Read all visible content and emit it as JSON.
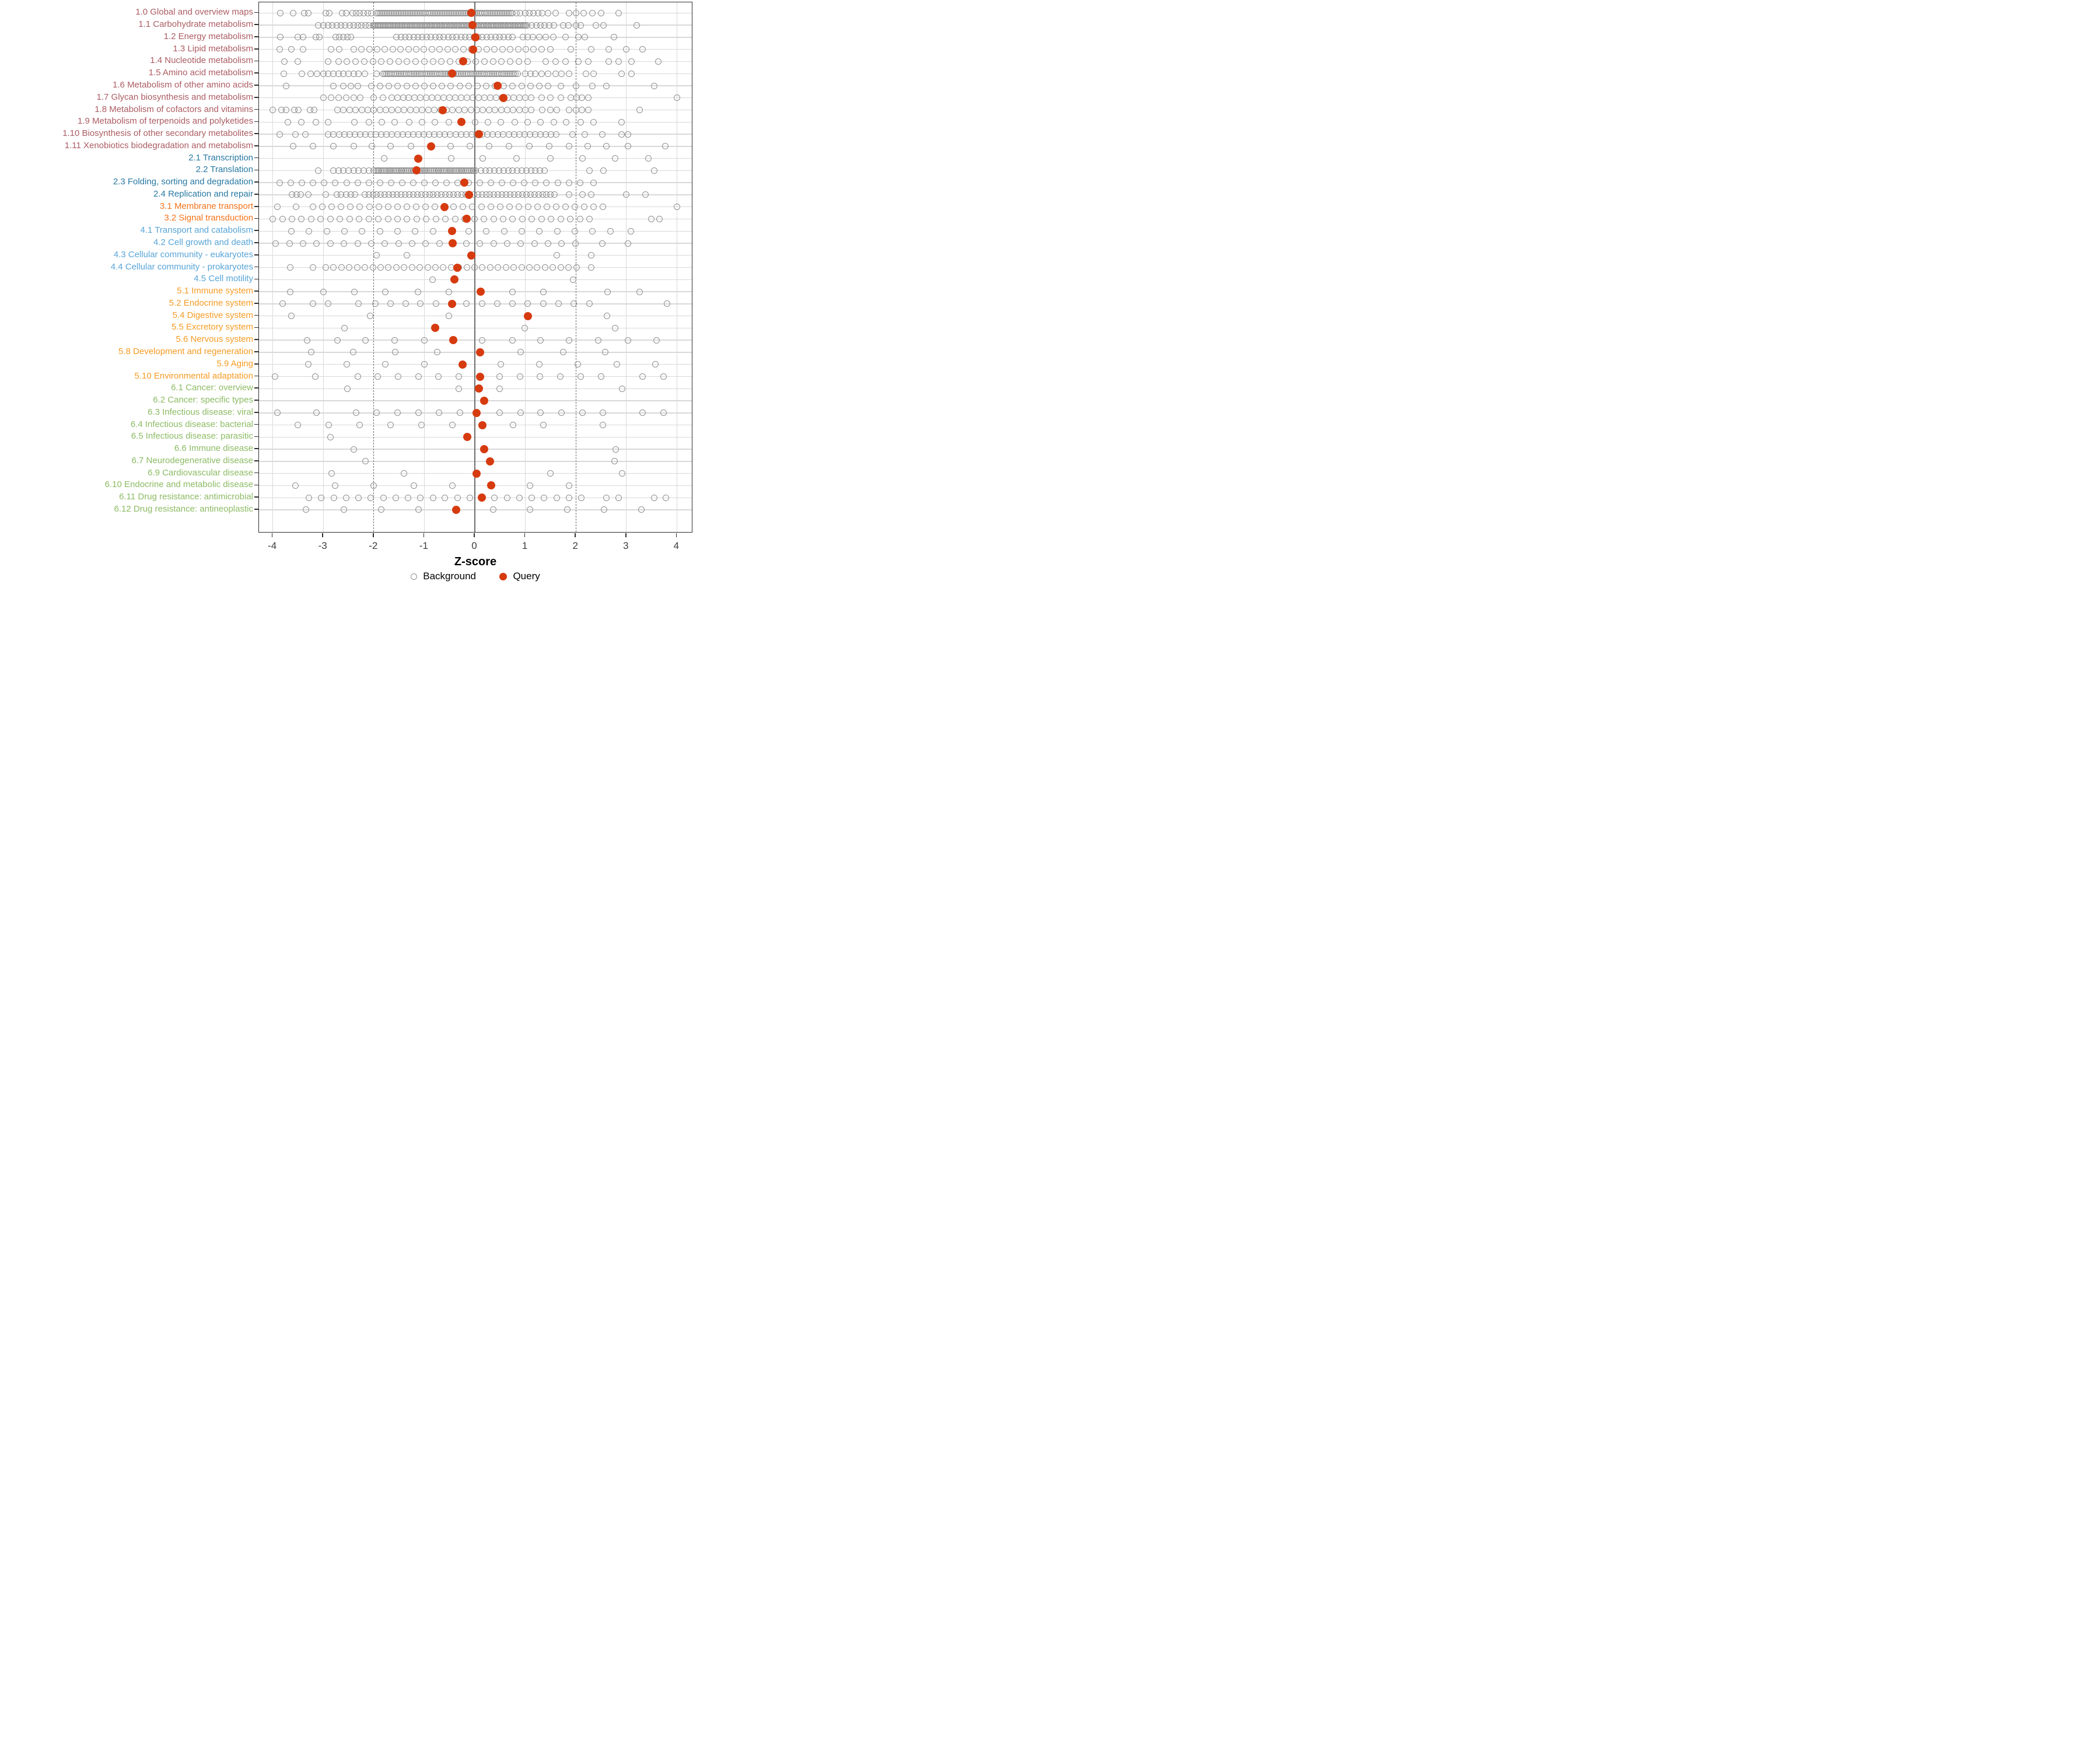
{
  "colors": {
    "query_dot": "#d63b10",
    "background_dot": "#8f8f8f",
    "zero_line": "#6e6e6e",
    "dashed_line": "#6b6b6b",
    "grid_line": "#d9d9d9",
    "group_colors": {
      "1": "#ac5c63",
      "2": "#2879a3",
      "3": "#f5731a",
      "4": "#58a5d8",
      "5": "#f79b24",
      "6": "#8cbb63"
    }
  },
  "axis": {
    "xlabel": "Z-score",
    "ticks": [
      "-4",
      "-3",
      "-2",
      "-1",
      "0",
      "1",
      "2",
      "3",
      "4"
    ],
    "tick_values": [
      -4,
      -3,
      -2,
      -1,
      0,
      1,
      2,
      3,
      4
    ],
    "xlim": [
      -4.3,
      4.3
    ],
    "dashed_lines_at": [
      -2,
      2
    ],
    "solid_line_at": 0
  },
  "legend": {
    "background_label": "Background",
    "query_label": "Query"
  },
  "chart_data": {
    "type": "scatter",
    "title": "",
    "xlabel": "Z-score",
    "series_legend": [
      "Background",
      "Query"
    ],
    "rows": [
      {
        "label": "1.0 Global and overview maps",
        "group": 1,
        "query": -0.07,
        "bands": [
          [
            -1.95,
            0.75,
            0.035
          ]
        ],
        "dots": [
          -3.85,
          -3.6,
          -3.38,
          -3.3,
          -2.95,
          -2.88,
          -2.63,
          -2.55,
          -2.42,
          -2.35,
          -2.28,
          -2.2,
          -2.12,
          -2.05,
          0.82,
          0.9,
          1.0,
          1.08,
          1.16,
          1.25,
          1.33,
          1.45,
          1.6,
          1.86,
          2.0,
          2.15,
          2.33,
          2.5,
          2.85
        ]
      },
      {
        "label": "1.1 Carbohydrate metabolism",
        "group": 1,
        "query": -0.05,
        "bands": [
          [
            -2.02,
            1.05,
            0.028
          ]
        ],
        "dots": [
          -3.1,
          -3.0,
          -2.9,
          -2.82,
          -2.73,
          -2.65,
          -2.57,
          -2.48,
          -2.4,
          -2.32,
          -2.25,
          -2.17,
          -2.1,
          1.13,
          1.22,
          1.3,
          1.38,
          1.47,
          1.57,
          1.75,
          1.85,
          2.0,
          2.1,
          2.4,
          2.55,
          3.2
        ]
      },
      {
        "label": "1.2 Energy metabolism",
        "group": 1,
        "query": 0.01,
        "bands": [
          [
            -1.55,
            0.78,
            0.085
          ]
        ],
        "dots": [
          -3.85,
          -3.5,
          -3.4,
          -3.15,
          -3.08,
          -2.75,
          -2.68,
          -2.6,
          -2.52,
          -2.45,
          0.95,
          1.05,
          1.15,
          1.28,
          1.4,
          1.55,
          1.8,
          2.05,
          2.18,
          2.75
        ]
      },
      {
        "label": "1.3 Lipid metabolism",
        "group": 1,
        "query": -0.03,
        "bands": [
          [
            -2.4,
            1.32,
            0.155
          ]
        ],
        "dots": [
          -3.86,
          -3.63,
          -3.4,
          -2.85,
          -2.68,
          1.5,
          1.9,
          2.3,
          2.65,
          3.0,
          3.32
        ]
      },
      {
        "label": "1.4 Nucleotide metabolism",
        "group": 1,
        "query": -0.23,
        "bands": [
          [
            -2.7,
            1.1,
            0.17
          ]
        ],
        "dots": [
          -3.77,
          -3.5,
          -2.9,
          1.4,
          1.6,
          1.8,
          2.05,
          2.25,
          2.65,
          2.85,
          3.1,
          3.63
        ]
      },
      {
        "label": "1.5 Amino acid metabolism",
        "group": 1,
        "query": -0.45,
        "bands": [
          [
            -1.82,
            0.86,
            0.036
          ]
        ],
        "dots": [
          -3.78,
          -3.42,
          -3.25,
          -3.12,
          -3.0,
          -2.9,
          -2.8,
          -2.7,
          -2.6,
          -2.5,
          -2.4,
          -2.3,
          -2.18,
          -1.95,
          1.0,
          1.1,
          1.2,
          1.32,
          1.45,
          1.6,
          1.72,
          1.87,
          2.2,
          2.35,
          2.9,
          3.1
        ]
      },
      {
        "label": "1.6 Metabolism of other amino acids",
        "group": 1,
        "query": 0.45,
        "bands": [
          [
            -2.05,
            1.33,
            0.175
          ]
        ],
        "dots": [
          -3.74,
          -2.8,
          -2.6,
          -2.45,
          -2.32,
          1.45,
          1.7,
          2.0,
          2.33,
          2.6,
          3.55
        ]
      },
      {
        "label": "1.7 Glycan biosynthesis and metabolism",
        "group": 1,
        "query": 0.57,
        "bands": [
          [
            -1.65,
            1.2,
            0.115
          ]
        ],
        "dots": [
          -3.0,
          -2.85,
          -2.7,
          -2.55,
          -2.4,
          -2.27,
          -2.0,
          -1.82,
          1.32,
          1.5,
          1.7,
          1.9,
          2.02,
          2.12,
          2.25,
          4.0
        ]
      },
      {
        "label": "1.8 Metabolism of cofactors and vitamins",
        "group": 1,
        "query": -0.64,
        "bands": [
          [
            -2.72,
            1.15,
            0.12
          ]
        ],
        "dots": [
          -4.0,
          -3.83,
          -3.74,
          -3.57,
          -3.49,
          -3.26,
          -3.18,
          1.33,
          1.5,
          1.62,
          1.87,
          2.0,
          2.12,
          2.25,
          3.26
        ]
      },
      {
        "label": "1.9 Metabolism of terpenoids and polyketides",
        "group": 1,
        "query": -0.27,
        "bands": [],
        "dots": [
          -3.7,
          -3.43,
          -3.15,
          -2.9,
          -2.38,
          -2.1,
          -1.84,
          -1.59,
          -1.3,
          -1.05,
          -0.79,
          -0.51,
          0.0,
          0.26,
          0.51,
          0.79,
          1.05,
          1.3,
          1.56,
          1.81,
          2.1,
          2.35,
          2.9
        ]
      },
      {
        "label": "1.10 Biosynthesis of other secondary metabolites",
        "group": 1,
        "query": 0.08,
        "bands": [
          [
            -2.9,
            1.65,
            0.105
          ]
        ],
        "dots": [
          -3.86,
          -3.55,
          -3.35,
          1.93,
          2.18,
          2.52,
          2.9,
          3.03
        ]
      },
      {
        "label": "1.11 Xenobiotics biodegradation and metabolism",
        "group": 1,
        "query": -0.87,
        "bands": [],
        "dots": [
          -3.6,
          -3.2,
          -2.8,
          -2.4,
          -2.04,
          -1.67,
          -1.27,
          -0.48,
          -0.1,
          0.28,
          0.68,
          1.08,
          1.47,
          1.87,
          2.24,
          2.6,
          3.03,
          3.77
        ]
      },
      {
        "label": "2.1 Transcription",
        "group": 2,
        "query": -1.12,
        "bands": [],
        "dots": [
          -1.79,
          -0.47,
          0.16,
          0.82,
          1.5,
          2.13,
          2.78,
          3.43
        ]
      },
      {
        "label": "2.2 Translation",
        "group": 2,
        "query": -1.15,
        "bands": [
          [
            -2.8,
            -2.0,
            0.1
          ],
          [
            -1.96,
            0.05,
            0.033
          ],
          [
            0.12,
            1.4,
            0.09
          ]
        ],
        "dots": [
          -3.1,
          2.27,
          2.55,
          3.55
        ]
      },
      {
        "label": "2.3 Folding, sorting and degradation",
        "group": 2,
        "query": -0.21,
        "bands": [],
        "dots": [
          -3.86,
          -3.64,
          -3.42,
          -3.2,
          -2.98,
          -2.76,
          -2.54,
          -2.32,
          -2.1,
          -1.88,
          -1.66,
          -1.44,
          -1.22,
          -1.0,
          -0.78,
          -0.56,
          -0.34,
          -0.12,
          0.1,
          0.32,
          0.54,
          0.76,
          0.98,
          1.2,
          1.42,
          1.64,
          1.86,
          2.08,
          2.35
        ]
      },
      {
        "label": "2.4 Replication and repair",
        "group": 2,
        "query": -0.12,
        "bands": [
          [
            -2.18,
            1.62,
            0.08
          ]
        ],
        "dots": [
          -3.62,
          -3.53,
          -3.45,
          -3.3,
          -2.95,
          -2.73,
          -2.65,
          -2.55,
          -2.45,
          -2.37,
          1.87,
          2.13,
          2.3,
          3.0,
          3.38
        ]
      },
      {
        "label": "3.1 Membrane transport",
        "group": 3,
        "query": -0.6,
        "bands": [
          [
            -3.2,
            2.66,
            0.185
          ]
        ],
        "dots": [
          -3.91,
          -3.54,
          4.0
        ]
      },
      {
        "label": "3.2 Signal transduction",
        "group": 3,
        "query": -0.16,
        "bands": [
          [
            -4.0,
            2.3,
            0.19
          ]
        ],
        "dots": [
          3.49,
          3.66
        ]
      },
      {
        "label": "4.1 Transport and catabolism",
        "group": 4,
        "query": -0.45,
        "bands": [],
        "dots": [
          -3.63,
          -3.28,
          -2.93,
          -2.58,
          -2.23,
          -1.88,
          -1.53,
          -1.18,
          -0.83,
          -0.12,
          0.23,
          0.58,
          0.93,
          1.28,
          1.63,
          1.98,
          2.33,
          2.68,
          3.09
        ]
      },
      {
        "label": "4.2 Cell growth and death",
        "group": 4,
        "query": -0.44,
        "bands": [],
        "dots": [
          -3.94,
          -3.67,
          -3.4,
          -3.13,
          -2.86,
          -2.59,
          -2.32,
          -2.05,
          -1.78,
          -1.51,
          -1.24,
          -0.97,
          -0.7,
          -0.17,
          0.1,
          0.37,
          0.64,
          0.91,
          1.18,
          1.45,
          1.72,
          1.99,
          2.52,
          3.03
        ]
      },
      {
        "label": "4.3 Cellular community - eukaryotes",
        "group": 4,
        "query": -0.07,
        "bands": [],
        "dots": [
          -1.95,
          -1.35,
          1.62,
          2.3
        ]
      },
      {
        "label": "4.4 Cellular community - prokaryotes",
        "group": 4,
        "query": -0.35,
        "bands": [
          [
            -2.95,
            2.05,
            0.155
          ]
        ],
        "dots": [
          -3.65,
          -3.2,
          2.3
        ]
      },
      {
        "label": "4.5 Cell motility",
        "group": 4,
        "query": -0.4,
        "bands": [],
        "dots": [
          -0.84,
          1.94
        ]
      },
      {
        "label": "5.1 Immune system",
        "group": 5,
        "query": 0.11,
        "bands": [],
        "dots": [
          -3.66,
          -3.0,
          -2.38,
          -1.77,
          -1.13,
          -0.51,
          0.74,
          1.36,
          2.63,
          3.26
        ]
      },
      {
        "label": "5.2 Endocrine system",
        "group": 5,
        "query": -0.45,
        "bands": [],
        "dots": [
          -3.8,
          -3.2,
          -2.9,
          -2.3,
          -1.97,
          -1.67,
          -1.37,
          -1.08,
          -0.77,
          -0.17,
          0.14,
          0.45,
          0.74,
          1.05,
          1.36,
          1.66,
          1.96,
          2.27,
          3.8
        ]
      },
      {
        "label": "5.4 Digestive system",
        "group": 5,
        "query": 1.05,
        "bands": [],
        "dots": [
          -3.63,
          -2.07,
          -0.51,
          2.61
        ]
      },
      {
        "label": "5.5 Excretory system",
        "group": 5,
        "query": -0.79,
        "bands": [],
        "dots": [
          -2.58,
          0.99,
          2.78
        ]
      },
      {
        "label": "5.6 Nervous system",
        "group": 5,
        "query": -0.43,
        "bands": [],
        "dots": [
          -3.32,
          -2.72,
          -2.16,
          -1.59,
          -1.0,
          0.14,
          0.74,
          1.3,
          1.87,
          2.44,
          3.03,
          3.6
        ]
      },
      {
        "label": "5.8 Development and regeneration",
        "group": 5,
        "query": 0.1,
        "bands": [],
        "dots": [
          -3.24,
          -2.41,
          -1.58,
          -0.74,
          0.91,
          1.75,
          2.58
        ]
      },
      {
        "label": "5.9 Aging",
        "group": 5,
        "query": -0.24,
        "bands": [],
        "dots": [
          -3.3,
          -2.53,
          -1.77,
          -1.0,
          0.51,
          1.28,
          2.04,
          2.81,
          3.57
        ]
      },
      {
        "label": "5.10 Environmental adaptation",
        "group": 5,
        "query": 0.1,
        "bands": [],
        "dots": [
          -3.95,
          -3.16,
          -2.32,
          -1.92,
          -1.52,
          -1.12,
          -0.72,
          -0.32,
          0.49,
          0.89,
          1.29,
          1.69,
          2.1,
          2.5,
          3.32,
          3.73
        ]
      },
      {
        "label": "6.1 Cancer: overview",
        "group": 6,
        "query": 0.08,
        "bands": [],
        "dots": [
          -2.52,
          -0.32,
          0.49,
          2.91
        ]
      },
      {
        "label": "6.2 Cancer: specific types",
        "group": 6,
        "query": 0.18,
        "bands": [],
        "dots": []
      },
      {
        "label": "6.3 Infectious disease: viral",
        "group": 6,
        "query": 0.04,
        "bands": [],
        "dots": [
          -3.91,
          -3.14,
          -2.35,
          -1.94,
          -1.53,
          -1.12,
          -0.71,
          -0.3,
          0.49,
          0.91,
          1.3,
          1.71,
          2.13,
          2.54,
          3.32,
          3.73
        ]
      },
      {
        "label": "6.4 Infectious disease: bacterial",
        "group": 6,
        "query": 0.155,
        "bands": [],
        "dots": [
          -3.5,
          -2.89,
          -2.28,
          -1.67,
          -1.06,
          -0.45,
          0.76,
          1.36,
          2.54
        ]
      },
      {
        "label": "6.5 Infectious disease: parasitic",
        "group": 6,
        "query": -0.145,
        "bands": [],
        "dots": [
          -2.86
        ]
      },
      {
        "label": "6.6 Immune disease",
        "group": 6,
        "query": 0.19,
        "bands": [],
        "dots": [
          -2.4,
          2.79
        ]
      },
      {
        "label": "6.7 Neurodegenerative disease",
        "group": 6,
        "query": 0.3,
        "bands": [],
        "dots": [
          -2.17,
          2.76
        ]
      },
      {
        "label": "6.9 Cardiovascular disease",
        "group": 6,
        "query": 0.035,
        "bands": [],
        "dots": [
          -2.84,
          -1.4,
          1.49,
          2.92
        ]
      },
      {
        "label": "6.10 Endocrine and metabolic disease",
        "group": 6,
        "query": 0.32,
        "bands": [],
        "dots": [
          -3.55,
          -2.77,
          -2.0,
          -1.21,
          -0.45,
          1.09,
          1.87
        ]
      },
      {
        "label": "6.11 Drug resistance: antimicrobial",
        "group": 6,
        "query": 0.14,
        "bands": [],
        "dots": [
          -3.28,
          -3.04,
          -2.79,
          -2.55,
          -2.3,
          -2.06,
          -1.81,
          -1.57,
          -1.32,
          -1.08,
          -0.83,
          -0.59,
          -0.34,
          -0.1,
          0.39,
          0.64,
          0.88,
          1.13,
          1.37,
          1.62,
          1.86,
          2.11,
          2.6,
          2.85,
          3.55,
          3.78
        ]
      },
      {
        "label": "6.12 Drug resistance: antineoplastic",
        "group": 6,
        "query": -0.37,
        "bands": [],
        "dots": [
          -3.34,
          -2.59,
          -1.85,
          -1.12,
          0.36,
          1.09,
          1.83,
          2.56,
          3.3
        ]
      }
    ]
  }
}
